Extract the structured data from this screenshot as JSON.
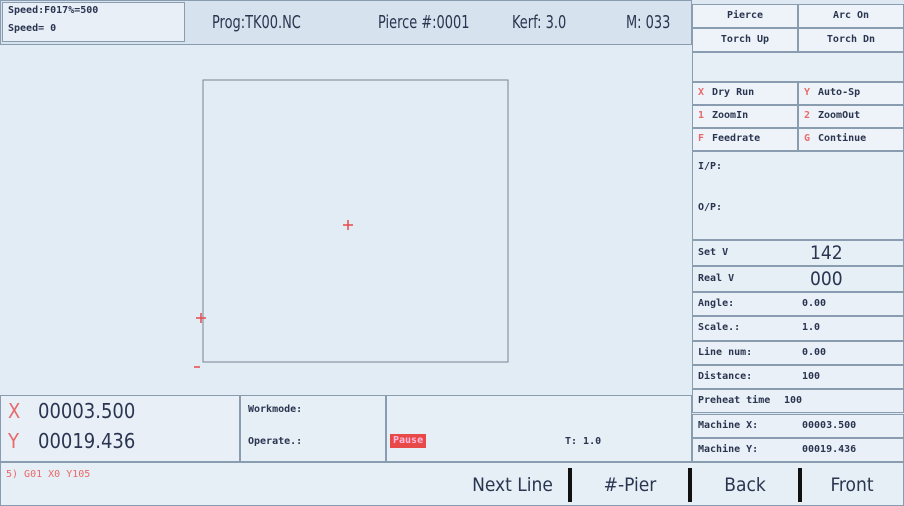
{
  "status": {
    "speed_line1": "Speed:F017%=500",
    "speed_line2": "Speed= 0",
    "program": "Prog:TK00.NC",
    "pierce": "Pierce #:0001",
    "kerf": "Kerf: 3.0",
    "m_code": "M: 033"
  },
  "torch_buttons": [
    [
      "Pierce",
      "Arc On"
    ],
    [
      "Torch Up",
      "Torch Dn"
    ]
  ],
  "function_keys": [
    [
      {
        "key": "X",
        "label": "Dry Run"
      },
      {
        "key": "Y",
        "label": "Auto-Sp"
      }
    ],
    [
      {
        "key": "1",
        "label": "ZoomIn"
      },
      {
        "key": "2",
        "label": "ZoomOut"
      }
    ],
    [
      {
        "key": "F",
        "label": "Feedrate"
      },
      {
        "key": "G",
        "label": "Continue"
      }
    ]
  ],
  "io": {
    "input": "I/P:",
    "output": "O/P:"
  },
  "velocity": [
    {
      "label": "Set V",
      "value": "142"
    },
    {
      "label": "Real V",
      "value": "000"
    }
  ],
  "parameters": [
    {
      "label": "Angle:",
      "value": "0.00"
    },
    {
      "label": "Scale.:",
      "value": "1.0"
    },
    {
      "label": "Line num:",
      "value": "0.00"
    },
    {
      "label": "Distance:",
      "value": "100"
    },
    {
      "label": "Preheat time",
      "value": "100"
    },
    {
      "label": "Machine X:",
      "value": "00003.500"
    },
    {
      "label": "Machine Y:",
      "value": "00019.436"
    }
  ],
  "coordinates": [
    {
      "axis": "X",
      "value": "00003.500"
    },
    {
      "axis": "Y",
      "value": "00019.436"
    }
  ],
  "mode": {
    "workmode": "Workmode:",
    "operate": "Operate.:",
    "state": "Pause",
    "tool": "T: 1.0"
  },
  "gcode_line": "5) G01 X0 Y105",
  "soft_keys": [
    "Next Line",
    "#-Pier",
    "Back",
    "Front"
  ]
}
